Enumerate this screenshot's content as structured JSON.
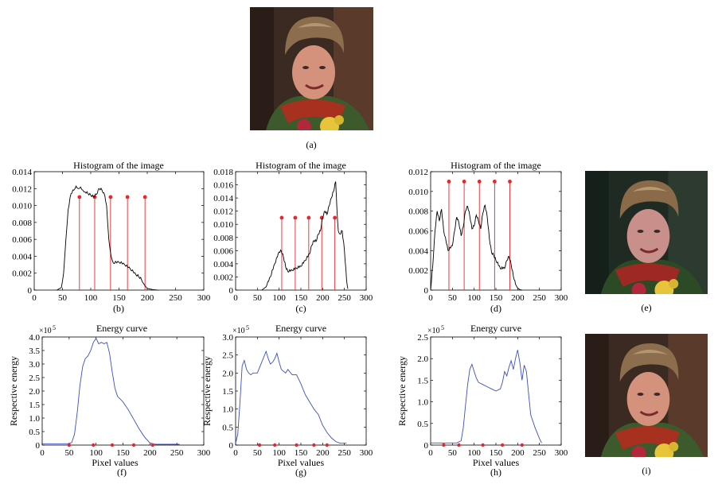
{
  "photos": {
    "a": {
      "caption": "(a)",
      "variant": "original"
    },
    "e": {
      "caption": "(e)",
      "variant": "enhanced-dark"
    },
    "i": {
      "caption": "(i)",
      "variant": "enhanced"
    }
  },
  "captions": {
    "a": "(a)",
    "b": "(b)",
    "c": "(c)",
    "d": "(d)",
    "e": "(e)",
    "f": "(f)",
    "g": "(g)",
    "h": "(h)",
    "i": "(i)"
  },
  "colors": {
    "curve_hist": "#000000",
    "curve_energy": "#3a4fc4",
    "marker": "#e8262c",
    "axis": "#000000"
  },
  "chart_data": [
    {
      "id": "b",
      "type": "line",
      "title": "Histogram of the image",
      "caption": "(b)",
      "xlim": [
        0,
        300
      ],
      "ylim": [
        0,
        0.014
      ],
      "xticks": [
        "0",
        "50",
        "100",
        "150",
        "200",
        "250",
        "300"
      ],
      "yticks": [
        "0",
        "0.002",
        "0.004",
        "0.006",
        "0.008",
        "0.010",
        "0.012",
        "0.014"
      ],
      "ytick_values": [
        0,
        0.002,
        0.004,
        0.006,
        0.008,
        0.01,
        0.012,
        0.014
      ],
      "xtick_values": [
        0,
        50,
        100,
        150,
        200,
        250,
        300
      ],
      "series": [
        {
          "x": [
            40,
            48,
            52,
            56,
            60,
            65,
            70,
            74,
            78,
            82,
            86,
            90,
            95,
            100,
            105,
            110,
            115,
            120,
            125,
            128,
            132,
            136,
            140,
            150,
            160,
            170,
            180,
            185,
            190,
            195,
            200,
            210,
            220
          ],
          "y": [
            0,
            0.0003,
            0.002,
            0.006,
            0.0095,
            0.0114,
            0.0118,
            0.0123,
            0.012,
            0.0122,
            0.0118,
            0.0116,
            0.0114,
            0.0112,
            0.011,
            0.0113,
            0.012,
            0.0118,
            0.0111,
            0.01,
            0.006,
            0.004,
            0.0032,
            0.0033,
            0.003,
            0.0025,
            0.0018,
            0.0016,
            0.0012,
            0.0006,
            0.0002,
            5e-05,
            0
          ]
        }
      ],
      "stems": {
        "x": [
          80,
          107,
          135,
          165,
          196
        ],
        "y": 0.011
      }
    },
    {
      "id": "c",
      "type": "line",
      "title": "Histogram of the image",
      "caption": "(c)",
      "xlim": [
        0,
        300
      ],
      "ylim": [
        0,
        0.018
      ],
      "xticks": [
        "0",
        "50",
        "100",
        "150",
        "200",
        "250",
        "300"
      ],
      "yticks": [
        "0",
        "0.002",
        "0.004",
        "0.006",
        "0.008",
        "0.010",
        "0.012",
        "0.014",
        "0.016",
        "0.018"
      ],
      "ytick_values": [
        0,
        0.002,
        0.004,
        0.006,
        0.008,
        0.01,
        0.012,
        0.014,
        0.016,
        0.018
      ],
      "xtick_values": [
        0,
        50,
        100,
        150,
        200,
        250,
        300
      ],
      "series": [
        {
          "x": [
            60,
            70,
            80,
            90,
            100,
            105,
            110,
            115,
            120,
            130,
            140,
            150,
            160,
            170,
            175,
            180,
            185,
            190,
            195,
            200,
            205,
            210,
            215,
            220,
            225,
            230,
            233,
            236,
            240,
            245,
            250,
            255,
            258
          ],
          "y": [
            0,
            0.0005,
            0.002,
            0.004,
            0.0058,
            0.0059,
            0.005,
            0.0035,
            0.0028,
            0.003,
            0.0033,
            0.0036,
            0.0045,
            0.0055,
            0.0068,
            0.0075,
            0.0074,
            0.0085,
            0.009,
            0.011,
            0.012,
            0.0115,
            0.0128,
            0.014,
            0.015,
            0.0165,
            0.012,
            0.009,
            0.0085,
            0.009,
            0.006,
            0.0015,
            0.0002
          ]
        }
      ],
      "stems": {
        "x": [
          106,
          137,
          168,
          198,
          228
        ],
        "y": 0.011
      }
    },
    {
      "id": "d",
      "type": "line",
      "title": "Histogram of the image",
      "caption": "(d)",
      "xlim": [
        0,
        300
      ],
      "ylim": [
        0,
        0.012
      ],
      "xticks": [
        "0",
        "50",
        "100",
        "150",
        "200",
        "250",
        "300"
      ],
      "yticks": [
        "0",
        "0.002",
        "0.004",
        "0.006",
        "0.008",
        "0.010",
        "0.012"
      ],
      "ytick_values": [
        0,
        0.002,
        0.004,
        0.006,
        0.008,
        0.01,
        0.012
      ],
      "xtick_values": [
        0,
        50,
        100,
        150,
        200,
        250,
        300
      ],
      "series": [
        {
          "x": [
            0,
            5,
            10,
            15,
            20,
            25,
            30,
            40,
            50,
            55,
            60,
            65,
            70,
            75,
            80,
            85,
            90,
            95,
            100,
            105,
            110,
            115,
            120,
            125,
            130,
            135,
            140,
            145,
            150,
            160,
            170,
            175,
            180,
            185,
            190,
            195,
            200,
            205,
            210
          ],
          "y": [
            0,
            0.0025,
            0.006,
            0.008,
            0.007,
            0.0082,
            0.006,
            0.004,
            0.0045,
            0.006,
            0.0074,
            0.0068,
            0.0055,
            0.0064,
            0.008,
            0.0085,
            0.0075,
            0.0062,
            0.0065,
            0.0076,
            0.007,
            0.0062,
            0.0078,
            0.0086,
            0.0074,
            0.0052,
            0.0038,
            0.0035,
            0.003,
            0.0022,
            0.0022,
            0.003,
            0.0034,
            0.0026,
            0.0014,
            0.0006,
            0.0002,
            5e-05,
            0
          ]
        }
      ],
      "stems": {
        "x": [
          42,
          77,
          112,
          147,
          182
        ],
        "y": 0.011
      }
    },
    {
      "id": "f",
      "type": "line",
      "title": "Energy curve",
      "caption": "(f)",
      "exponent": "×10^5",
      "ylabel": "Respective energy",
      "xlabel": "Pixel values",
      "xlim": [
        0,
        300
      ],
      "ylim": [
        0,
        4.0
      ],
      "xticks": [
        "0",
        "50",
        "100",
        "150",
        "200",
        "250",
        "300"
      ],
      "yticks": [
        "0",
        "0.5",
        "1.0",
        "1.5",
        "2.0",
        "2.5",
        "3.0",
        "3.5",
        "4.0"
      ],
      "ytick_values": [
        0,
        0.5,
        1.0,
        1.5,
        2.0,
        2.5,
        3.0,
        3.5,
        4.0
      ],
      "xtick_values": [
        0,
        50,
        100,
        150,
        200,
        250,
        300
      ],
      "series": [
        {
          "x": [
            0,
            50,
            55,
            60,
            65,
            70,
            75,
            80,
            85,
            90,
            95,
            100,
            105,
            110,
            115,
            120,
            125,
            130,
            135,
            140,
            145,
            150,
            160,
            170,
            180,
            190,
            200,
            210,
            255
          ],
          "y": [
            0.05,
            0.05,
            0.1,
            0.4,
            1.2,
            2.2,
            2.9,
            3.2,
            3.3,
            3.5,
            3.8,
            3.95,
            3.75,
            3.8,
            3.75,
            3.8,
            3.4,
            2.7,
            2.1,
            1.8,
            1.7,
            1.6,
            1.3,
            0.95,
            0.6,
            0.3,
            0.08,
            0.03,
            0.03
          ]
        }
      ],
      "markers": {
        "x": [
          50,
          95,
          130,
          170,
          205
        ],
        "y": 0
      }
    },
    {
      "id": "g",
      "type": "line",
      "title": "Energy curve",
      "caption": "(g)",
      "exponent": "×10^5",
      "ylabel": "Respective energy",
      "xlabel": "Pixel values",
      "xlim": [
        0,
        300
      ],
      "ylim": [
        0,
        3.0
      ],
      "xticks": [
        "0",
        "50",
        "100",
        "150",
        "200",
        "250",
        "300"
      ],
      "yticks": [
        "0",
        "0.5",
        "1.0",
        "1.5",
        "2.0",
        "2.5",
        "3.0"
      ],
      "ytick_values": [
        0,
        0.5,
        1.0,
        1.5,
        2.0,
        2.5,
        3.0
      ],
      "xtick_values": [
        0,
        50,
        100,
        150,
        200,
        250,
        300
      ],
      "series": [
        {
          "x": [
            0,
            5,
            10,
            15,
            20,
            25,
            30,
            35,
            40,
            50,
            60,
            70,
            75,
            80,
            85,
            90,
            95,
            100,
            105,
            110,
            115,
            120,
            130,
            140,
            150,
            160,
            170,
            180,
            190,
            200,
            210,
            220,
            230,
            240,
            255
          ],
          "y": [
            0.05,
            0.3,
            1.2,
            2.2,
            2.35,
            2.1,
            2.0,
            1.95,
            2.0,
            2.0,
            2.3,
            2.6,
            2.4,
            2.25,
            2.3,
            2.4,
            2.55,
            2.3,
            2.1,
            2.05,
            2.0,
            2.1,
            1.95,
            1.95,
            1.7,
            1.4,
            1.2,
            1.0,
            0.85,
            0.55,
            0.35,
            0.2,
            0.1,
            0.05,
            0.05
          ]
        }
      ],
      "markers": {
        "x": [
          55,
          90,
          140,
          180,
          210
        ],
        "y": 0
      }
    },
    {
      "id": "h",
      "type": "line",
      "title": "Energy curve",
      "caption": "(h)",
      "exponent": "×10^5",
      "ylabel": "Respective energy",
      "xlabel": "Pixel values",
      "xlim": [
        0,
        300
      ],
      "ylim": [
        0,
        2.5
      ],
      "xticks": [
        "0",
        "50",
        "100",
        "150",
        "200",
        "250",
        "300"
      ],
      "yticks": [
        "0",
        "0.5",
        "1.0",
        "1.5",
        "2.0",
        "2.5"
      ],
      "ytick_values": [
        0,
        0.5,
        1.0,
        1.5,
        2.0,
        2.5
      ],
      "xtick_values": [
        0,
        50,
        100,
        150,
        200,
        250,
        300
      ],
      "series": [
        {
          "x": [
            0,
            50,
            60,
            70,
            75,
            80,
            85,
            90,
            95,
            100,
            105,
            110,
            120,
            130,
            140,
            150,
            160,
            165,
            170,
            175,
            180,
            185,
            190,
            195,
            200,
            205,
            210,
            215,
            220,
            225,
            230,
            240,
            250,
            255
          ],
          "y": [
            0.05,
            0.05,
            0.05,
            0.1,
            0.4,
            0.9,
            1.4,
            1.75,
            1.87,
            1.7,
            1.55,
            1.45,
            1.4,
            1.35,
            1.3,
            1.25,
            1.3,
            1.45,
            1.7,
            1.6,
            1.8,
            1.95,
            1.75,
            2.0,
            2.2,
            1.9,
            1.5,
            1.85,
            1.7,
            1.2,
            0.7,
            0.4,
            0.15,
            0.05
          ]
        }
      ],
      "markers": {
        "x": [
          30,
          65,
          120,
          165,
          210
        ],
        "y": 0
      }
    }
  ]
}
